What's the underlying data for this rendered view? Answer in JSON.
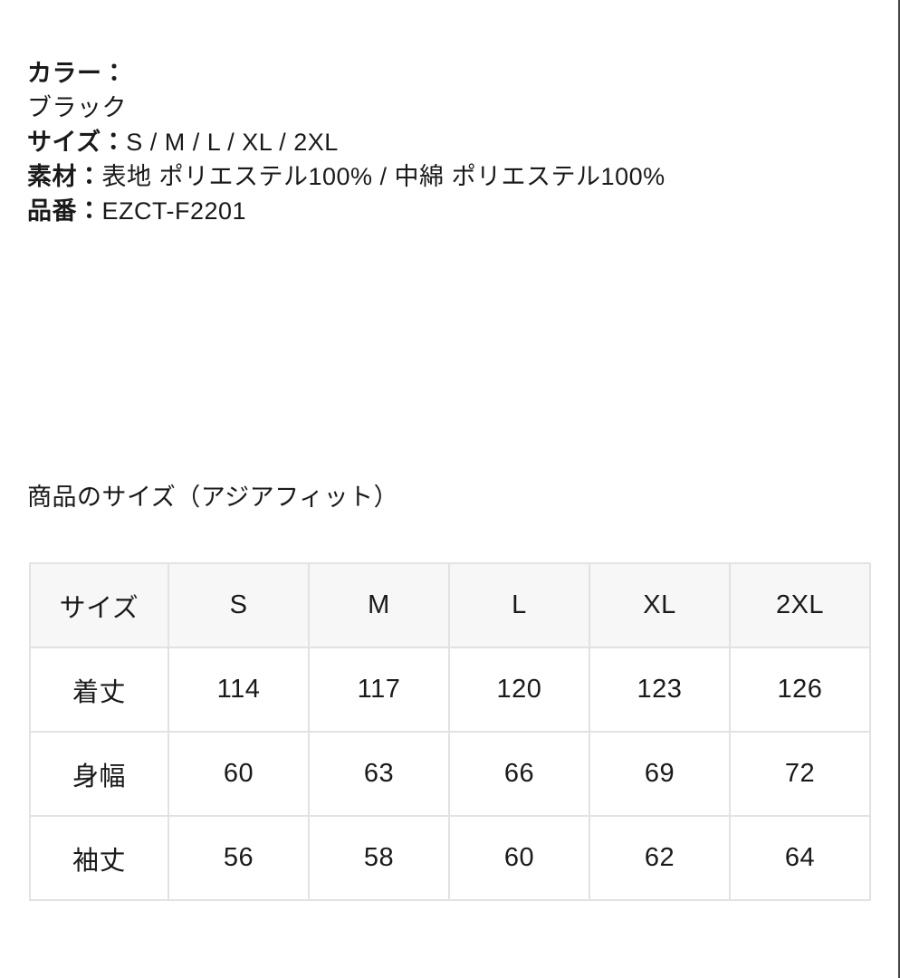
{
  "product_info": {
    "color_label": "カラー：",
    "color_value": "ブラック",
    "size_label": "サイズ：",
    "size_value": "S / M / L / XL / 2XL",
    "material_label": "素材：",
    "material_value": "表地 ポリエステル100% / 中綿 ポリエステル100%",
    "item_number_label": "品番：",
    "item_number_value": "EZCT-F2201"
  },
  "size_section": {
    "title": "商品のサイズ（アジアフィット）"
  },
  "size_table": {
    "header": [
      "サイズ",
      "S",
      "M",
      "L",
      "XL",
      "2XL"
    ],
    "rows": [
      {
        "label": "着丈",
        "values": [
          "114",
          "117",
          "120",
          "123",
          "126"
        ]
      },
      {
        "label": "身幅",
        "values": [
          "60",
          "63",
          "66",
          "69",
          "72"
        ]
      },
      {
        "label": "袖丈",
        "values": [
          "56",
          "58",
          "60",
          "62",
          "64"
        ]
      }
    ]
  },
  "colors": {
    "text": "#1a1a1a",
    "table_border": "#e2e2e2",
    "table_header_bg": "#f7f7f7",
    "page_edge": "#454545",
    "background": "#ffffff"
  }
}
